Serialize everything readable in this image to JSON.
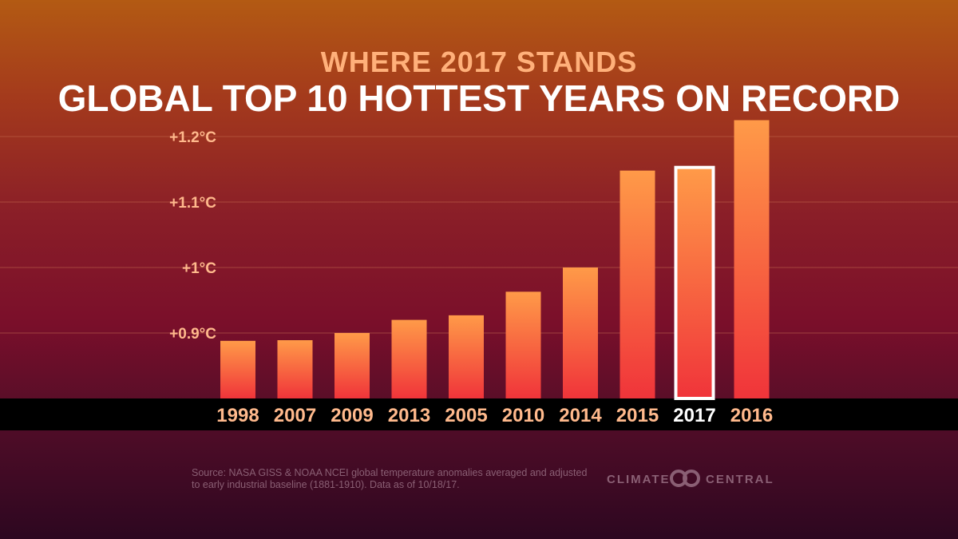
{
  "header": {
    "subtitle": "WHERE 2017 STANDS",
    "title": "GLOBAL TOP 10 HOTTEST YEARS ON RECORD"
  },
  "chart_data": {
    "type": "bar",
    "title": "GLOBAL TOP 10 HOTTEST YEARS ON RECORD",
    "subtitle": "WHERE 2017 STANDS",
    "xlabel": "",
    "ylabel": "",
    "categories": [
      "1998",
      "2007",
      "2009",
      "2013",
      "2005",
      "2010",
      "2014",
      "2015",
      "2017",
      "2016"
    ],
    "values": [
      0.888,
      0.889,
      0.9,
      0.92,
      0.927,
      0.963,
      1.0,
      1.148,
      1.151,
      1.225
    ],
    "highlight": "2017",
    "ylim": [
      0.8,
      1.25
    ],
    "yticks": [
      0.9,
      1.0,
      1.1,
      1.2
    ],
    "ytick_labels": [
      "+0.9°C",
      "+1°C",
      "+1.1°C",
      "+1.2°C"
    ],
    "grid": true,
    "legend": "none"
  },
  "footer": {
    "source_line1": "Source: NASA GISS & NOAA NCEI global temperature anomalies averaged and adjusted",
    "source_line2": "to early industrial baseline (1881-1910). Data as of 10/18/17.",
    "brand_left": "CLIMATE",
    "brand_right": "CENTRAL",
    "brand_icon": "climate-central-logo-icon"
  },
  "colors": {
    "subtitle": "#ffb07a",
    "title": "#ffffff",
    "tick": "#ffb98c",
    "bar_top": "#ff9a48",
    "bar_bottom": "#f0343a",
    "highlight_outline": "#ffffff",
    "highlight_label": "#ffffff",
    "axis_band": "#000000",
    "gridline": "#c26a4e",
    "footer_text": "#8a5f74"
  }
}
